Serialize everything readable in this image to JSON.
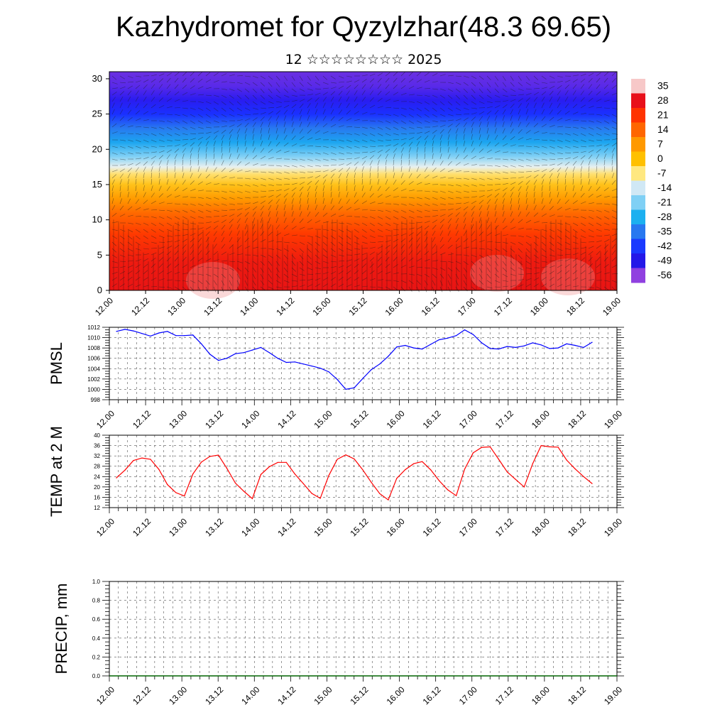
{
  "title": "Kazhydromet for Qyzylzhar(48.3 69.65)",
  "subtitle": "12 ☆☆☆☆☆☆☆☆ 2025",
  "chart_data": [
    {
      "type": "heatmap",
      "name": "temperature-height section",
      "x_ticks": [
        "12.00",
        "12.12",
        "13.00",
        "13.12",
        "14.00",
        "14.12",
        "15.00",
        "15.12",
        "16.00",
        "16.12",
        "17.00",
        "17.12",
        "18.00",
        "18.12",
        "19.00"
      ],
      "y_ticks": [
        "0",
        "5",
        "10",
        "15",
        "20",
        "25",
        "30"
      ],
      "ylim": [
        0,
        31
      ],
      "colorbar_labels": [
        "35",
        "28",
        "21",
        "14",
        "7",
        "0",
        "-7",
        "-14",
        "-21",
        "-28",
        "-35",
        "-42",
        "-49",
        "-56"
      ],
      "colorbar_colors": [
        "#f7c8c8",
        "#e8101a",
        "#ff3300",
        "#ff6600",
        "#ff9900",
        "#ffc000",
        "#ffe880",
        "#d0e8f5",
        "#7fd0f5",
        "#1cb0f0",
        "#2878f0",
        "#1a3aff",
        "#2418e8",
        "#9040e0"
      ],
      "colorbar_range": [
        -60,
        40
      ]
    },
    {
      "type": "line",
      "ylabel": "PMSL",
      "y_ticks": [
        "998",
        "1000",
        "1002",
        "1004",
        "1006",
        "1008",
        "1010",
        "1012"
      ],
      "ylim": [
        998,
        1012
      ],
      "x_ticks": [
        "12.00",
        "12.12",
        "13.00",
        "13.12",
        "14.00",
        "14.12",
        "15.00",
        "15.12",
        "16.00",
        "16.12",
        "17.00",
        "17.12",
        "18.00",
        "18.12",
        "19.00"
      ],
      "color": "#0000ff",
      "series": [
        {
          "values": [
            1011.2,
            1011.6,
            1011.3,
            1010.8,
            1010.3,
            1010.9,
            1011.2,
            1010.4,
            1010.4,
            1010.5,
            1008.8,
            1006.8,
            1005.6,
            1006.0,
            1006.9,
            1007.1,
            1007.6,
            1008.1,
            1007.1,
            1006.0,
            1005.2,
            1005.3,
            1004.9,
            1004.5,
            1004.1,
            1003.4,
            1001.9,
            1000.0,
            1000.3,
            1002.1,
            1003.8,
            1004.9,
            1006.4,
            1008.2,
            1008.5,
            1008.0,
            1007.8,
            1008.7,
            1009.6,
            1009.9,
            1010.4,
            1011.5,
            1010.6,
            1009.0,
            1007.9,
            1007.8,
            1008.3,
            1008.1,
            1008.4,
            1009.0,
            1008.6,
            1007.9,
            1008.0,
            1008.8,
            1008.5,
            1008.1,
            1009.1
          ]
        }
      ]
    },
    {
      "type": "line",
      "ylabel": "TEMP at 2 M",
      "y_ticks": [
        "12",
        "16",
        "20",
        "24",
        "28",
        "32",
        "36",
        "40"
      ],
      "ylim": [
        12,
        40
      ],
      "x_ticks": [
        "12.00",
        "12.12",
        "13.00",
        "13.12",
        "14.00",
        "14.12",
        "15.00",
        "15.12",
        "16.00",
        "16.12",
        "17.00",
        "17.12",
        "18.00",
        "18.12",
        "19.00"
      ],
      "color": "#ff0000",
      "series": [
        {
          "values": [
            23.5,
            26.5,
            30.2,
            31.2,
            30.7,
            26.8,
            20.9,
            17.8,
            16.5,
            25.0,
            29.6,
            31.8,
            32.3,
            27.2,
            21.5,
            18.3,
            15.5,
            24.8,
            27.8,
            29.5,
            29.5,
            25.0,
            21.3,
            17.5,
            15.6,
            24.4,
            30.7,
            32.4,
            30.8,
            26.6,
            21.8,
            17.4,
            15.0,
            23.3,
            26.7,
            29.0,
            29.8,
            26.6,
            22.4,
            18.9,
            16.6,
            26.9,
            33.2,
            35.3,
            35.5,
            30.7,
            25.8,
            22.9,
            20.0,
            29.0,
            36.0,
            35.5,
            35.4,
            30.4,
            27.0,
            24.0,
            21.3
          ]
        }
      ]
    },
    {
      "type": "line",
      "ylabel": "PRECIP, mm",
      "y_ticks": [
        "0.0",
        "0.2",
        "0.4",
        "0.6",
        "0.8",
        "1.0"
      ],
      "ylim": [
        0,
        1
      ],
      "x_ticks": [
        "12.00",
        "12.12",
        "13.00",
        "13.12",
        "14.00",
        "14.12",
        "15.00",
        "15.12",
        "16.00",
        "16.12",
        "17.00",
        "17.12",
        "18.00",
        "18.12",
        "19.00"
      ],
      "color": "#006400",
      "series": [
        {
          "values": [
            0,
            0,
            0,
            0,
            0,
            0,
            0,
            0,
            0,
            0,
            0,
            0,
            0,
            0,
            0,
            0,
            0,
            0,
            0,
            0,
            0,
            0,
            0,
            0,
            0,
            0,
            0,
            0,
            0,
            0,
            0,
            0,
            0,
            0,
            0,
            0,
            0,
            0,
            0,
            0,
            0,
            0,
            0,
            0,
            0,
            0,
            0,
            0,
            0,
            0,
            0,
            0,
            0,
            0,
            0,
            0,
            0
          ]
        }
      ]
    }
  ]
}
